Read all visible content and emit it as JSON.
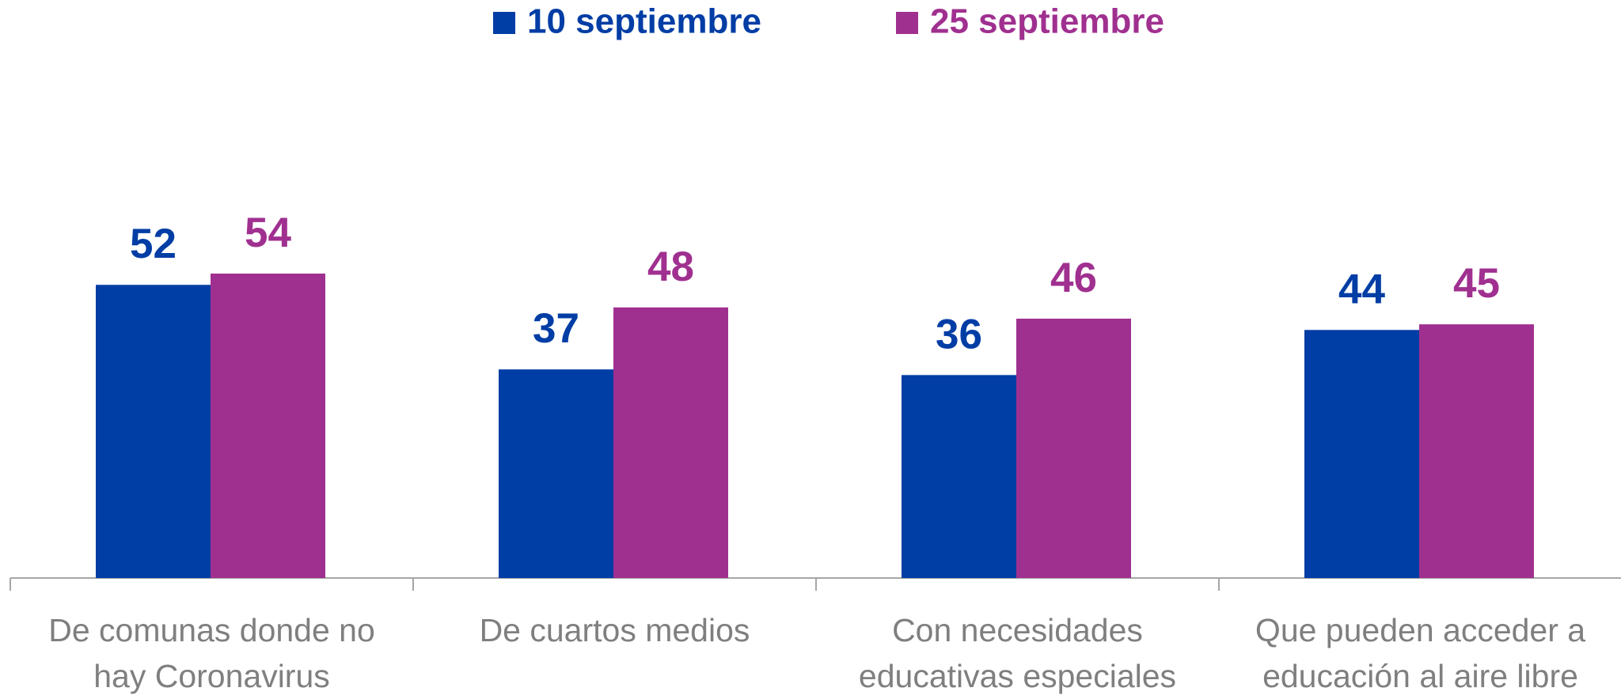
{
  "chart_data": {
    "type": "bar",
    "categories": [
      "De comunas donde no hay Coronavirus",
      "De cuartos medios",
      "Con necesidades educativas especiales",
      "Que pueden acceder a educación al aire libre"
    ],
    "series": [
      {
        "name": "10 septiembre",
        "color": "#003da5",
        "values": [
          52,
          37,
          36,
          44
        ]
      },
      {
        "name": "25 septiembre",
        "color": "#a03090",
        "values": [
          54,
          48,
          46,
          45
        ]
      }
    ],
    "ylim": [
      0,
      100
    ]
  }
}
